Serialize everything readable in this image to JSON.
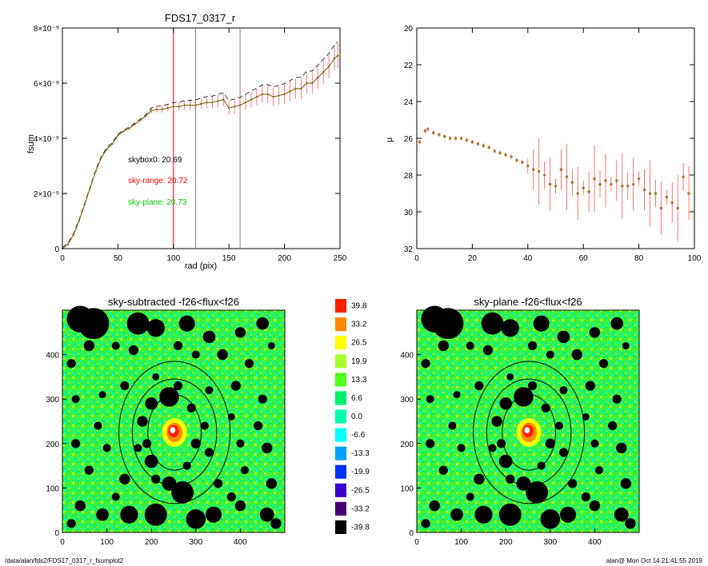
{
  "chart_data": [
    {
      "type": "line",
      "title": "FDS17_0317_r",
      "xlabel": "rad (pix)",
      "ylabel": "fsum",
      "xlim": [
        0,
        250
      ],
      "ylim": [
        0,
        8e-09
      ],
      "xticks": [
        "0",
        "50",
        "100",
        "150",
        "200",
        "250"
      ],
      "yticks": [
        "0",
        "2×10⁻⁹",
        "4×10⁻⁹",
        "6×10⁻⁹",
        "8×10⁻⁹"
      ],
      "vlines": [
        {
          "x": 100,
          "color": "#ff0000"
        },
        {
          "x": 120,
          "color": "#808080"
        },
        {
          "x": 160,
          "color": "#808080"
        }
      ],
      "annotations": [
        {
          "text": "skybox0: 20.69",
          "color": "#000000"
        },
        {
          "text": "sky-range: 20.72",
          "color": "#ff0000"
        },
        {
          "text": "sky-plane: 20.73",
          "color": "#00d000"
        }
      ],
      "series": [
        {
          "color": "#ff5a5a",
          "x": [
            0,
            5,
            10,
            15,
            20,
            25,
            30,
            35,
            40,
            45,
            50,
            55,
            60,
            65,
            70,
            75,
            80,
            85,
            90,
            95,
            100,
            105,
            110,
            115,
            120,
            125,
            130,
            135,
            140,
            145,
            150,
            155,
            160,
            165,
            170,
            175,
            180,
            185,
            190,
            195,
            200,
            205,
            210,
            215,
            220,
            225,
            230,
            235,
            240,
            245,
            248
          ],
          "y": [
            0,
            1.5e-10,
            5e-10,
            1e-09,
            1.6e-09,
            2.2e-09,
            2.8e-09,
            3.3e-09,
            3.6e-09,
            3.8e-09,
            4.1e-09,
            4.25e-09,
            4.35e-09,
            4.5e-09,
            4.65e-09,
            4.8e-09,
            5e-09,
            5.05e-09,
            5.05e-09,
            5.1e-09,
            5.15e-09,
            5.15e-09,
            5.2e-09,
            5.2e-09,
            5.2e-09,
            5.25e-09,
            5.3e-09,
            5.3e-09,
            5.35e-09,
            5.4e-09,
            5.1e-09,
            5.15e-09,
            5.2e-09,
            5.3e-09,
            5.4e-09,
            5.5e-09,
            5.6e-09,
            5.6e-09,
            5.5e-09,
            5.55e-09,
            5.6e-09,
            5.7e-09,
            5.8e-09,
            5.8e-09,
            6e-09,
            6e-09,
            6.2e-09,
            6.4e-09,
            6.6e-09,
            6.9e-09,
            7e-09
          ]
        }
      ]
    },
    {
      "type": "scatter",
      "xlabel": "",
      "ylabel": "μ",
      "xlim": [
        0,
        100
      ],
      "ylim": [
        32,
        20
      ],
      "xticks": [
        "0",
        "20",
        "40",
        "60",
        "80",
        "100"
      ],
      "yticks": [
        "20",
        "22",
        "24",
        "26",
        "28",
        "30",
        "32"
      ],
      "series": [
        {
          "color": "#b07a3a",
          "x": [
            1,
            3,
            4,
            6,
            8,
            10,
            12,
            14,
            16,
            18,
            20,
            22,
            24,
            26,
            28,
            30,
            32,
            34,
            36,
            38,
            40,
            42,
            44,
            46,
            48,
            50,
            52,
            54,
            56,
            58,
            60,
            62,
            64,
            66,
            68,
            70,
            72,
            74,
            76,
            78,
            80,
            82,
            84,
            86,
            88,
            90,
            92,
            94,
            96,
            98
          ],
          "y": [
            26.2,
            25.6,
            25.5,
            25.7,
            25.8,
            25.9,
            26.0,
            26.0,
            26.0,
            26.1,
            26.2,
            26.3,
            26.4,
            26.5,
            26.7,
            26.8,
            26.9,
            27.0,
            27.2,
            27.3,
            27.5,
            27.7,
            27.8,
            28.0,
            28.5,
            28.6,
            27.7,
            28.1,
            28.4,
            29.0,
            28.7,
            28.9,
            28.2,
            28.5,
            28.3,
            28.5,
            28.3,
            28.6,
            28.6,
            28.5,
            28.2,
            28.8,
            29.0,
            29.0,
            29.8,
            29.2,
            29.5,
            29.8,
            28.1,
            29.0
          ]
        }
      ]
    },
    {
      "type": "heatmap",
      "title": "sky-subtracted -f26<flux<f26",
      "xlim": [
        0,
        500
      ],
      "ylim": [
        0,
        500
      ],
      "xticks": [
        "0",
        "100",
        "200",
        "300",
        "400"
      ],
      "yticks": [
        "0",
        "100",
        "200",
        "300",
        "400"
      ]
    },
    {
      "type": "heatmap",
      "title": "sky-plane -f26<flux<f26",
      "xlim": [
        0,
        500
      ],
      "ylim": [
        0,
        500
      ],
      "xticks": [
        "0",
        "100",
        "200",
        "300",
        "400"
      ],
      "yticks": [
        "0",
        "100",
        "200",
        "300",
        "400"
      ]
    }
  ],
  "colorbar": {
    "labels": [
      "39.8",
      "33.2",
      "26.5",
      "19.9",
      "13.3",
      "6.6",
      "0.0",
      "-6.6",
      "-13.3",
      "-19.9",
      "-26.5",
      "-33.2",
      "-39.8"
    ],
    "colors": [
      "#ff2000",
      "#ff8a00",
      "#ffff00",
      "#a8ff30",
      "#50ff20",
      "#00f070",
      "#00ffb0",
      "#00ffff",
      "#00a0ff",
      "#0030ff",
      "#3a00c8",
      "#4a0070",
      "#000000"
    ]
  },
  "footer": {
    "path": "/data/alan/fds2/FDS17_0317_r_fsumplot2",
    "stamp": "alan@  Mon Oct 14 21:41:55 2019"
  }
}
